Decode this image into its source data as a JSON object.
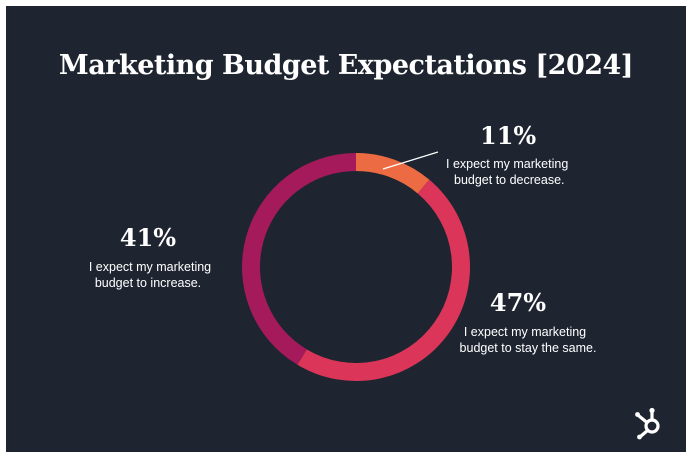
{
  "chart_data": {
    "type": "pie",
    "title": "Marketing Budget Expectations [2024]",
    "slices": [
      {
        "label_lines": [
          "I expect my marketing",
          "budget to decrease."
        ],
        "value": 11,
        "display": "11%",
        "color": "#ec6b43"
      },
      {
        "label_lines": [
          "I expect my marketing",
          "budget to stay the same."
        ],
        "value": 47,
        "display": "47%",
        "color": "#db3659"
      },
      {
        "label_lines": [
          "I expect my marketing",
          "budget to increase."
        ],
        "value": 41,
        "display": "41%",
        "color": "#a41a5a"
      }
    ]
  },
  "brand": {
    "logo_name": "hubspot-sprocket-icon",
    "logo_color": "#ffffff"
  },
  "colors": {
    "background": "#1e2530",
    "text": "#ffffff"
  }
}
